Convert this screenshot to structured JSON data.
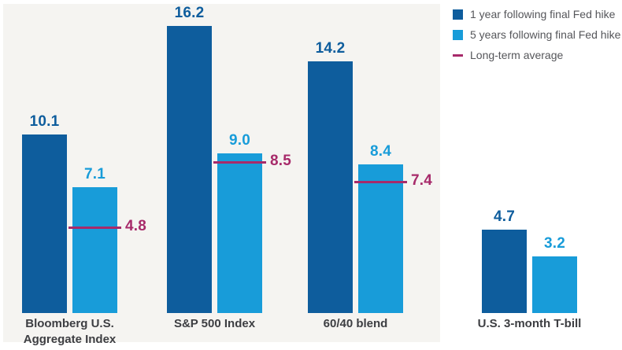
{
  "chart_data": {
    "type": "bar",
    "title": "",
    "categories": [
      "Bloomberg U.S. Aggregate Index",
      "S&P 500 Index",
      "60/40 blend",
      "U.S. 3-month T-bill"
    ],
    "series": [
      {
        "name": "1 year following final Fed hike",
        "color": "#0e5d9d",
        "values": [
          10.1,
          16.2,
          14.2,
          4.7
        ]
      },
      {
        "name": "5 years following final Fed hike",
        "color": "#189cd9",
        "values": [
          7.1,
          9.0,
          8.4,
          3.2
        ]
      }
    ],
    "reference_line": {
      "name": "Long-term average",
      "color": "#a72a6a",
      "values": [
        4.8,
        8.5,
        7.4,
        null
      ]
    },
    "value_label_decimals": 1,
    "ylim": [
      0,
      17.7
    ],
    "axes_hidden": true,
    "grid": false,
    "legend_position": "top-right",
    "plot_background": "#f5f4f1",
    "plot_background_note": "gray panel behind first three categories only"
  }
}
